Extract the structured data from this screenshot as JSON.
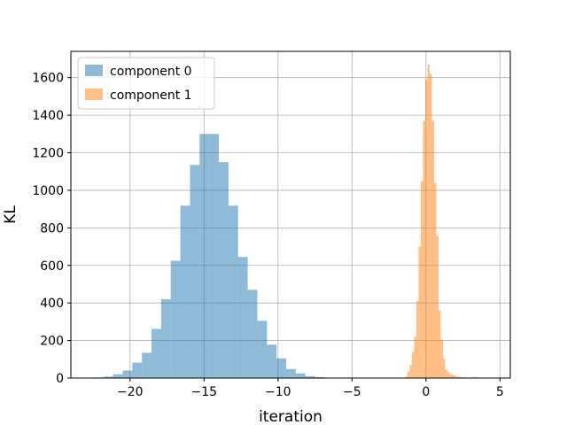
{
  "chart_data": {
    "type": "histogram",
    "title": "",
    "xlabel": "iteration",
    "ylabel": "KL",
    "xlim": [
      -24,
      5.7
    ],
    "ylim": [
      0,
      1740
    ],
    "xticks": [
      -20,
      -15,
      -10,
      -5,
      0,
      5
    ],
    "xtick_labels": [
      "−20",
      "−15",
      "−10",
      "−5",
      "0",
      "5"
    ],
    "yticks": [
      0,
      200,
      400,
      600,
      800,
      1000,
      1200,
      1400,
      1600
    ],
    "ytick_labels": [
      "0",
      "200",
      "400",
      "600",
      "800",
      "1000",
      "1200",
      "1400",
      "1600"
    ],
    "grid": true,
    "legend": {
      "position": "top-left"
    },
    "series": [
      {
        "name": "component 0",
        "color": "#1f77b4",
        "alpha": 0.5,
        "bin_edges": [
          -22.5,
          -21.8,
          -21.15,
          -20.5,
          -19.85,
          -19.2,
          -18.55,
          -17.9,
          -17.25,
          -16.6,
          -15.95,
          -15.3,
          -14.65,
          -14.0,
          -13.35,
          -12.7,
          -12.05,
          -11.4,
          -10.75,
          -10.1,
          -9.45,
          -8.8,
          -8.15,
          -7.5,
          -6.85,
          -6.2
        ],
        "counts": [
          3,
          8,
          20,
          40,
          82,
          135,
          262,
          420,
          625,
          918,
          1135,
          1300,
          1300,
          1150,
          918,
          645,
          470,
          305,
          178,
          105,
          48,
          25,
          10,
          5,
          2
        ]
      },
      {
        "name": "component 1",
        "color": "#ff7f0e",
        "alpha": 0.5,
        "bin_edges": [
          -1.4,
          -1.25,
          -1.1,
          -0.95,
          -0.8,
          -0.65,
          -0.5,
          -0.35,
          -0.2,
          -0.05,
          0.1,
          0.25,
          0.4,
          0.55,
          0.7,
          0.85,
          1.0,
          1.15,
          1.3,
          1.45,
          1.6,
          1.75,
          2.0,
          2.3,
          2.7,
          3.1,
          3.5
        ],
        "counts": [
          8,
          35,
          70,
          140,
          220,
          410,
          700,
          1050,
          1370,
          1590,
          1670,
          1620,
          1370,
          1040,
          760,
          360,
          205,
          105,
          45,
          32,
          22,
          15,
          8,
          4,
          2,
          5
        ]
      }
    ]
  }
}
